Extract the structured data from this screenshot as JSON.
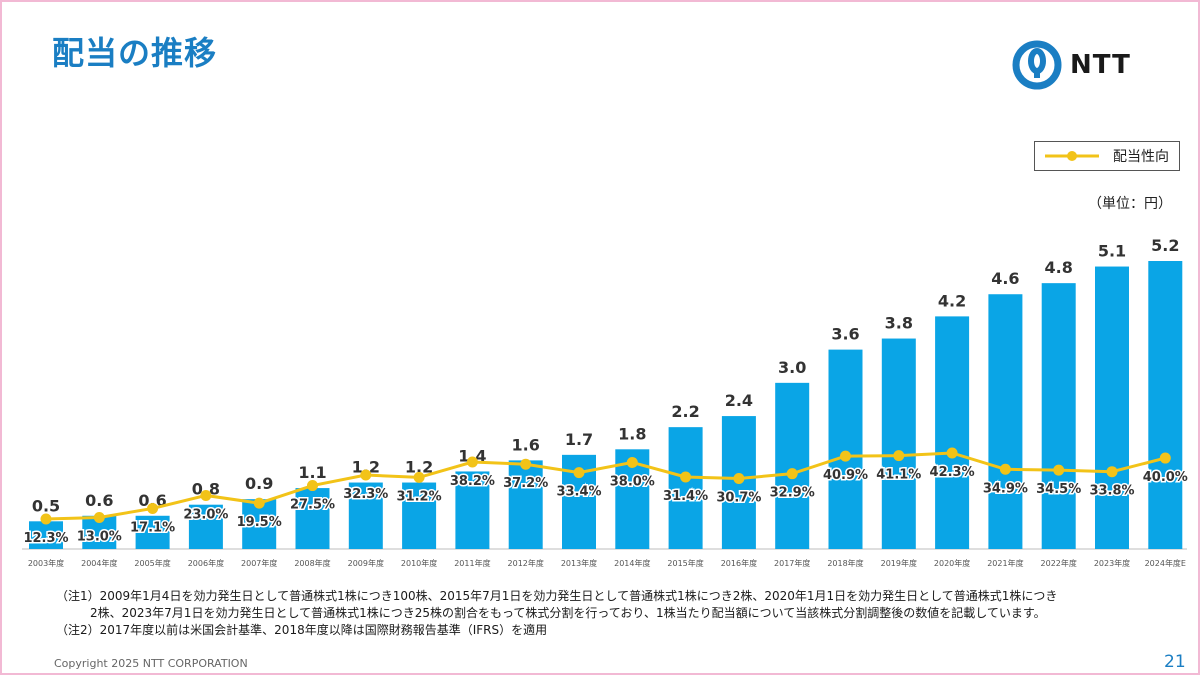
{
  "header": {
    "title": "配当の推移",
    "logo_text": "NTT"
  },
  "legend": {
    "label": "配当性向"
  },
  "unit": "（単位：円）",
  "chart_data": {
    "type": "bar",
    "categories": [
      "2003年度",
      "2004年度",
      "2005年度",
      "2006年度",
      "2007年度",
      "2008年度",
      "2009年度",
      "2010年度",
      "2011年度",
      "2012年度",
      "2013年度",
      "2014年度",
      "2015年度",
      "2016年度",
      "2017年度",
      "2018年度",
      "2019年度",
      "2020年度",
      "2021年度",
      "2022年度",
      "2023年度",
      "2024年度E"
    ],
    "series": [
      {
        "values": [
          0.5,
          0.6,
          0.6,
          0.8,
          0.9,
          1.1,
          1.2,
          1.2,
          1.4,
          1.6,
          1.7,
          1.8,
          2.2,
          2.4,
          3.0,
          3.6,
          3.8,
          4.2,
          4.6,
          4.8,
          5.1,
          5.2
        ],
        "labels": [
          "0.5",
          "0.6",
          "0.6",
          "0.8",
          "0.9",
          "1.1",
          "1.2",
          "1.2",
          "1.4",
          "1.6",
          "1.7",
          "1.8",
          "2.2",
          "2.4",
          "3.0",
          "3.6",
          "3.8",
          "4.2",
          "4.6",
          "4.8",
          "5.1",
          "5.2"
        ],
        "color": "#0aa5e6"
      },
      {
        "name": "配当性向",
        "values": [
          12.3,
          13.0,
          17.1,
          23.0,
          19.5,
          27.5,
          32.3,
          31.2,
          38.2,
          37.2,
          33.4,
          38.0,
          31.4,
          30.7,
          32.9,
          40.9,
          41.1,
          42.3,
          34.9,
          34.5,
          33.8,
          40.0
        ],
        "labels": [
          "12.3%",
          "13.0%",
          "17.1%",
          "23.0%",
          "19.5%",
          "27.5%",
          "32.3%",
          "31.2%",
          "38.2%",
          "37.2%",
          "33.4%",
          "38.0%",
          "31.4%",
          "30.7%",
          "32.9%",
          "40.9%",
          "41.1%",
          "42.3%",
          "34.9%",
          "34.5%",
          "33.8%",
          "40.0%"
        ],
        "color": "#f2c318"
      }
    ]
  },
  "notes": {
    "note1_line1": "（注1）2009年1月4日を効力発生日として普通株式1株につき100株、2015年7月1日を効力発生日として普通株式1株につき2株、2020年1月1日を効力発生日として普通株式1株につき",
    "note1_line2": "2株、2023年7月1日を効力発生日として普通株式1株につき25株の割合をもって株式分割を行っており、1株当たり配当額について当該株式分割調整後の数値を記載しています。",
    "note2": "（注2）2017年度以前は米国会計基準、2018年度以降は国際財務報告基準（IFRS）を適用"
  },
  "footer": {
    "copyright": "Copyright 2025 NTT CORPORATION",
    "page": "21"
  }
}
